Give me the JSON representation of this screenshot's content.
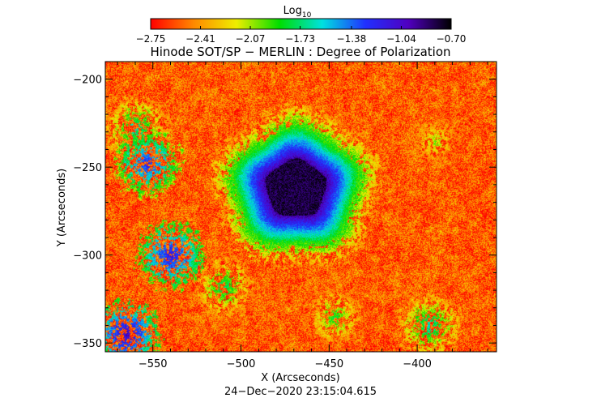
{
  "chart_data": {
    "type": "heatmap",
    "title": "Hinode SOT/SP − MERLIN : Degree of Polarization",
    "xlabel": "X (Arcseconds)",
    "ylabel": "Y (Arcseconds)",
    "timestamp": "24−Dec−2020 23:15:04.615",
    "xlim": [
      -577,
      -355
    ],
    "ylim": [
      -355,
      -190
    ],
    "x_ticks": [
      -550,
      -500,
      -450,
      -400
    ],
    "x_tick_labels": [
      "−550",
      "−500",
      "−450",
      "−400"
    ],
    "y_ticks": [
      -200,
      -250,
      -300,
      -350
    ],
    "y_tick_labels": [
      "−200",
      "−250",
      "−300",
      "−350"
    ],
    "colorbar": {
      "label_base": "Log",
      "label_sub": "10",
      "range": [
        -2.75,
        -0.7
      ],
      "ticks": [
        -2.75,
        -2.41,
        -2.07,
        -1.73,
        -1.38,
        -1.04,
        -0.7
      ],
      "tick_labels": [
        "−2.75",
        "−2.41",
        "−2.07",
        "−1.73",
        "−1.38",
        "−1.04",
        "−0.70"
      ],
      "colors": [
        "#ff0000",
        "#ff8800",
        "#eeee00",
        "#00dd00",
        "#00e0e0",
        "#2030ff",
        "#5000c0",
        "#000000"
      ]
    },
    "features": {
      "background_log_dop": -2.55,
      "sunspot": {
        "center_x": -469,
        "center_y": -262,
        "umbra_log_dop": -0.75,
        "umbra_radius_arcsec": 17,
        "penumbra_radius_arcsec": 35
      },
      "network_patches": [
        {
          "x": -553,
          "y": -248,
          "level": -1.2
        },
        {
          "x": -560,
          "y": -228,
          "level": -1.6
        },
        {
          "x": -540,
          "y": -300,
          "level": -1.1
        },
        {
          "x": -565,
          "y": -345,
          "level": -1.0
        },
        {
          "x": -510,
          "y": -318,
          "level": -1.7
        },
        {
          "x": -447,
          "y": -335,
          "level": -1.8
        },
        {
          "x": -390,
          "y": -235,
          "level": -2.0
        },
        {
          "x": -393,
          "y": -340,
          "level": -1.6
        }
      ]
    }
  }
}
